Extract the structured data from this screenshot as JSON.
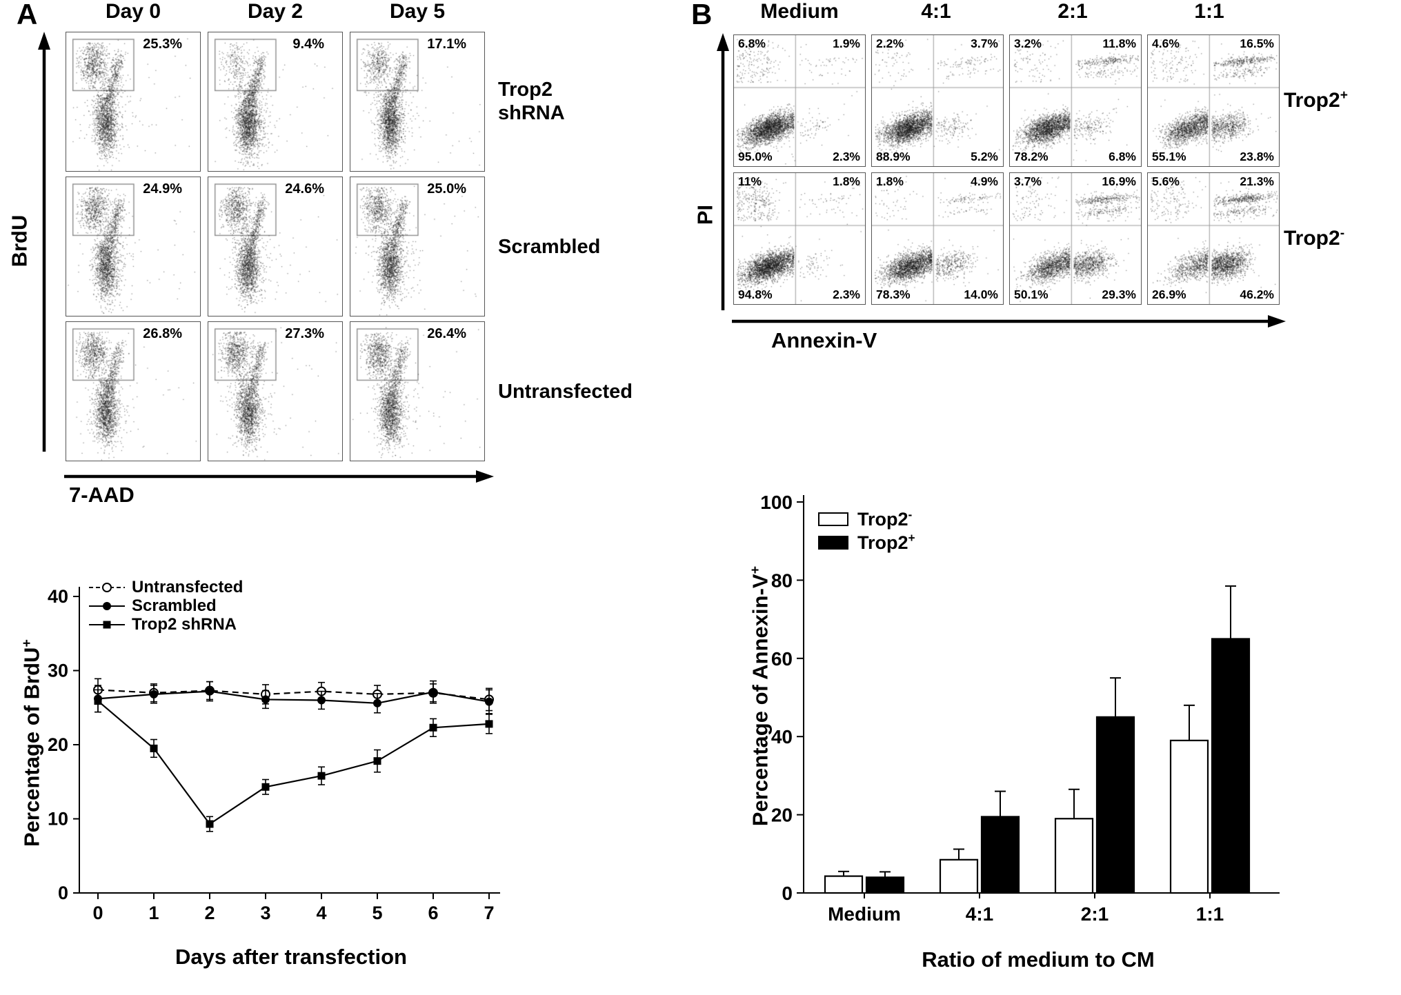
{
  "figure": {
    "panel_a": {
      "label": "A",
      "col_headers": [
        "Day 0",
        "Day 2",
        "Day 5"
      ],
      "row_labels": [
        "Trop2 shRNA",
        "Scrambled",
        "Untransfected"
      ],
      "xlabel": "7-AAD",
      "ylabel": "BrdU",
      "percent_labels": [
        [
          "25.3%",
          "9.4%",
          "17.1%"
        ],
        [
          "24.9%",
          "24.6%",
          "25.0%"
        ],
        [
          "26.8%",
          "27.3%",
          "26.4%"
        ]
      ]
    },
    "panel_b": {
      "label": "B",
      "col_headers": [
        "Medium",
        "4:1",
        "2:1",
        "1:1"
      ],
      "row_labels": [
        {
          "base": "Trop2",
          "sup": "+"
        },
        {
          "base": "Trop2",
          "sup": "-"
        }
      ],
      "xlabel": "Annexin-V",
      "ylabel": "PI",
      "quadrant_labels": [
        [
          {
            "ul": "6.8%",
            "ur": "1.9%",
            "ll": "95.0%",
            "lr": "2.3%"
          },
          {
            "ul": "2.2%",
            "ur": "3.7%",
            "ll": "88.9%",
            "lr": "5.2%"
          },
          {
            "ul": "3.2%",
            "ur": "11.8%",
            "ll": "78.2%",
            "lr": "6.8%"
          },
          {
            "ul": "4.6%",
            "ur": "16.5%",
            "ll": "55.1%",
            "lr": "23.8%"
          }
        ],
        [
          {
            "ul": "11%",
            "ur": "1.8%",
            "ll": "94.8%",
            "lr": "2.3%"
          },
          {
            "ul": "1.8%",
            "ur": "4.9%",
            "ll": "78.3%",
            "lr": "14.0%"
          },
          {
            "ul": "3.7%",
            "ur": "16.9%",
            "ll": "50.1%",
            "lr": "29.3%"
          },
          {
            "ul": "5.6%",
            "ur": "21.3%",
            "ll": "26.9%",
            "lr": "46.2%"
          }
        ]
      ]
    },
    "line_chart": {
      "ylabel_base": "Percentage of BrdU",
      "ylabel_sup": "+",
      "xlabel": "Days after transfection",
      "legend": [
        "Untransfected",
        "Scrambled",
        "Trop2 shRNA"
      ]
    },
    "bar_chart": {
      "ylabel_base": "Percentage of Annexin-V",
      "ylabel_sup": "+",
      "xlabel": "Ratio of medium to CM",
      "legend": [
        {
          "base": "Trop2",
          "sup": "-"
        },
        {
          "base": "Trop2",
          "sup": "+"
        }
      ]
    }
  },
  "icons": {
    "open-circle-marker": "○",
    "filled-circle-marker": "●",
    "filled-square-marker": "■",
    "axis-arrow": "→",
    "white-bar-swatch": "□",
    "black-bar-swatch": "■"
  },
  "colors": {
    "foreground": "#000000",
    "background": "#ffffff",
    "bar_trop2_neg": "#ffffff",
    "bar_trop2_pos": "#000000",
    "dots": "#141414"
  },
  "chart_data": [
    {
      "id": "panel_a_flow",
      "type": "scatter",
      "subtype": "flow_cytometry_dot_plots",
      "xlabel": "7-AAD",
      "ylabel": "BrdU",
      "columns": [
        "Day 0",
        "Day 2",
        "Day 5"
      ],
      "rows": [
        "Trop2 shRNA",
        "Scrambled",
        "Untransfected"
      ],
      "gate_percent": [
        [
          25.3,
          9.4,
          17.1
        ],
        [
          24.9,
          24.6,
          25.0
        ],
        [
          26.8,
          27.3,
          26.4
        ]
      ]
    },
    {
      "id": "panel_b_flow",
      "type": "scatter",
      "subtype": "flow_cytometry_quadrant_plots",
      "xlabel": "Annexin-V",
      "ylabel": "PI",
      "columns": [
        "Medium",
        "4:1",
        "2:1",
        "1:1"
      ],
      "rows": [
        "Trop2+",
        "Trop2-"
      ],
      "quadrant_order": [
        "UL",
        "UR",
        "LL",
        "LR"
      ],
      "quadrant_percent": {
        "trop2_pos": [
          [
            6.8,
            1.9,
            95.0,
            2.3
          ],
          [
            2.2,
            3.7,
            88.9,
            5.2
          ],
          [
            3.2,
            11.8,
            78.2,
            6.8
          ],
          [
            4.6,
            16.5,
            55.1,
            23.8
          ]
        ],
        "trop2_neg": [
          [
            11,
            1.8,
            94.8,
            2.3
          ],
          [
            1.8,
            4.9,
            78.3,
            14.0
          ],
          [
            3.7,
            16.9,
            50.1,
            29.3
          ],
          [
            5.6,
            21.3,
            26.9,
            46.2
          ]
        ]
      }
    },
    {
      "id": "brdu_time_course",
      "type": "line",
      "xlabel": "Days after transfection",
      "ylabel": "Percentage of BrdU+",
      "x": [
        0,
        1,
        2,
        3,
        4,
        5,
        6,
        7
      ],
      "ylim": [
        0,
        40
      ],
      "yticks": [
        0,
        10,
        20,
        30,
        40
      ],
      "grid": false,
      "legend_position": "top-left",
      "series": [
        {
          "name": "Untransfected",
          "marker": "open-circle",
          "line": "dashed",
          "values": [
            27.4,
            27.0,
            27.3,
            26.8,
            27.2,
            26.8,
            27.0,
            26.1
          ],
          "errors": [
            1.5,
            1.2,
            1.2,
            1.3,
            1.2,
            1.2,
            1.2,
            1.5
          ]
        },
        {
          "name": "Scrambled",
          "marker": "filled-circle",
          "line": "solid",
          "values": [
            26.2,
            26.8,
            27.2,
            26.1,
            26.0,
            25.6,
            27.1,
            25.8
          ],
          "errors": [
            1.8,
            1.2,
            1.3,
            1.2,
            1.2,
            1.3,
            1.5,
            1.6
          ]
        },
        {
          "name": "Trop2 shRNA",
          "marker": "filled-square",
          "line": "solid",
          "values": [
            25.9,
            19.5,
            9.3,
            14.3,
            15.8,
            17.8,
            22.3,
            22.8
          ],
          "errors": [
            1.5,
            1.2,
            1.0,
            1.0,
            1.2,
            1.5,
            1.2,
            1.3
          ]
        }
      ]
    },
    {
      "id": "annexin_bars",
      "type": "bar",
      "xlabel": "Ratio of medium to CM",
      "ylabel": "Percentage of Annexin-V+",
      "categories": [
        "Medium",
        "4:1",
        "2:1",
        "1:1"
      ],
      "ylim": [
        0,
        100
      ],
      "yticks": [
        0,
        20,
        40,
        60,
        80,
        100
      ],
      "grid": false,
      "legend_position": "top-left",
      "series": [
        {
          "name": "Trop2-",
          "fill": "#ffffff",
          "values": [
            4.3,
            8.5,
            19.0,
            39.0
          ],
          "errors": [
            1.2,
            2.7,
            7.5,
            9.0
          ]
        },
        {
          "name": "Trop2+",
          "fill": "#000000",
          "values": [
            4.0,
            19.5,
            45.0,
            65.0
          ],
          "errors": [
            1.4,
            6.5,
            10.0,
            13.5
          ]
        }
      ]
    }
  ]
}
